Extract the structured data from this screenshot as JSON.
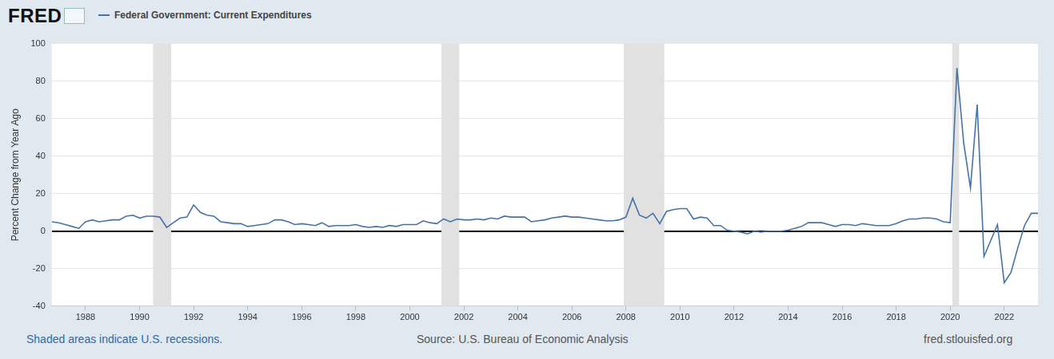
{
  "page": {
    "logo": "FRED",
    "note": "Shaded areas indicate U.S. recessions.",
    "source": "Source: U.S. Bureau of Economic Analysis",
    "url": "fred.stlouisfed.org"
  },
  "chart_data": {
    "type": "line",
    "ylabel": "Percent Change from Year Ago",
    "legend": "top",
    "grid": true,
    "xlim": [
      1986.75,
      2023.25
    ],
    "xticks": [
      1988,
      1990,
      1992,
      1994,
      1996,
      1998,
      2000,
      2002,
      2004,
      2006,
      2008,
      2010,
      2012,
      2014,
      2016,
      2018,
      2020,
      2022
    ],
    "ylim": [
      -40,
      100
    ],
    "yticks": [
      -40,
      -20,
      0,
      20,
      40,
      60,
      80,
      100
    ],
    "recessions": [
      [
        1990.5,
        1991.17
      ],
      [
        2001.17,
        2001.83
      ],
      [
        2007.92,
        2009.42
      ],
      [
        2020.08,
        2020.33
      ]
    ],
    "x": [
      1986.75,
      1987,
      1987.25,
      1987.5,
      1987.75,
      1988,
      1988.25,
      1988.5,
      1988.75,
      1989,
      1989.25,
      1989.5,
      1989.75,
      1990,
      1990.25,
      1990.5,
      1990.75,
      1991,
      1991.25,
      1991.5,
      1991.75,
      1992,
      1992.25,
      1992.5,
      1992.75,
      1993,
      1993.25,
      1993.5,
      1993.75,
      1994,
      1994.25,
      1994.5,
      1994.75,
      1995,
      1995.25,
      1995.5,
      1995.75,
      1996,
      1996.25,
      1996.5,
      1996.75,
      1997,
      1997.25,
      1997.5,
      1997.75,
      1998,
      1998.25,
      1998.5,
      1998.75,
      1999,
      1999.25,
      1999.5,
      1999.75,
      2000,
      2000.25,
      2000.5,
      2000.75,
      2001,
      2001.25,
      2001.5,
      2001.75,
      2002,
      2002.25,
      2002.5,
      2002.75,
      2003,
      2003.25,
      2003.5,
      2003.75,
      2004,
      2004.25,
      2004.5,
      2004.75,
      2005,
      2005.25,
      2005.5,
      2005.75,
      2006,
      2006.25,
      2006.5,
      2006.75,
      2007,
      2007.25,
      2007.5,
      2007.75,
      2008,
      2008.25,
      2008.5,
      2008.75,
      2009,
      2009.25,
      2009.5,
      2009.75,
      2010,
      2010.25,
      2010.5,
      2010.75,
      2011,
      2011.25,
      2011.5,
      2011.75,
      2012,
      2012.25,
      2012.5,
      2012.75,
      2013,
      2013.25,
      2013.5,
      2013.75,
      2014,
      2014.25,
      2014.5,
      2014.75,
      2015,
      2015.25,
      2015.5,
      2015.75,
      2016,
      2016.25,
      2016.5,
      2016.75,
      2017,
      2017.25,
      2017.5,
      2017.75,
      2018,
      2018.25,
      2018.5,
      2018.75,
      2019,
      2019.25,
      2019.5,
      2019.75,
      2020,
      2020.25,
      2020.5,
      2020.75,
      2021,
      2021.25,
      2021.5,
      2021.75,
      2022,
      2022.25,
      2022.5,
      2022.75,
      2023,
      2023.25
    ],
    "series": [
      {
        "name": "Federal Government: Current Expenditures",
        "color": "#4572a7",
        "values": [
          5,
          4.5,
          3.5,
          2.5,
          1.5,
          5,
          6,
          5,
          5.5,
          6,
          6,
          8,
          8.5,
          7,
          8,
          8,
          7.5,
          2,
          4.5,
          7,
          7.5,
          14,
          10,
          8.5,
          8,
          5,
          4.5,
          4,
          4,
          2.5,
          3,
          3.5,
          4,
          6,
          6,
          5,
          3.5,
          4,
          3.5,
          3,
          4.5,
          2.5,
          3,
          3,
          3,
          3.5,
          2.5,
          2,
          2.5,
          2,
          3,
          2.5,
          3.5,
          3.5,
          3.5,
          5.5,
          4.5,
          4,
          6.5,
          5,
          6.5,
          6,
          6,
          6.5,
          6,
          7,
          6.5,
          8,
          7.5,
          7.5,
          7.5,
          5,
          5.5,
          6,
          7,
          7.5,
          8,
          7.5,
          7.5,
          7,
          6.5,
          6,
          5.5,
          5.5,
          6,
          7.5,
          17.5,
          8.5,
          7,
          9.5,
          4,
          10.5,
          11.5,
          12,
          12,
          6.5,
          7.5,
          7,
          3,
          3,
          0.5,
          0,
          -0.5,
          -1.5,
          0,
          -0.5,
          0,
          0,
          0,
          0.5,
          1.5,
          2.5,
          4.5,
          4.5,
          4.5,
          3.5,
          2.5,
          3.5,
          3.5,
          3,
          4,
          3.5,
          3,
          3,
          3,
          4,
          5.5,
          6.5,
          6.5,
          7,
          7,
          6.5,
          5,
          4.5,
          87,
          47,
          23,
          67.5,
          -13.5,
          -5,
          3.5,
          -27.5,
          -22,
          -9,
          3,
          9.5,
          9.5
        ]
      }
    ]
  }
}
